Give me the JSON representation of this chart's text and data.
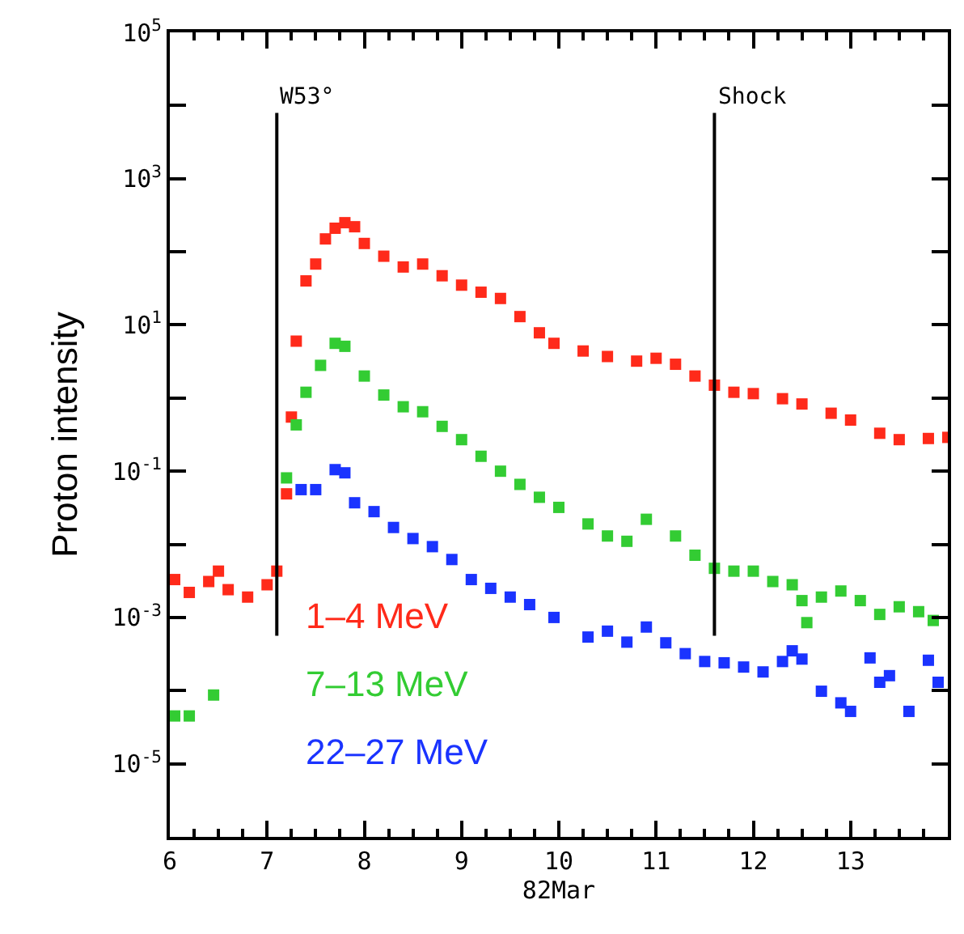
{
  "chart_data": {
    "type": "scatter",
    "xlabel": "82Mar",
    "ylabel": "Proton intensity",
    "marker": "square",
    "log": "y",
    "legend": false,
    "xlim": [
      6,
      14
    ],
    "xticks": [
      6,
      7,
      8,
      9,
      10,
      11,
      12,
      13
    ],
    "ylim": [
      1e-06,
      100000.0
    ],
    "yticks": [
      {
        "value": 1e-05,
        "label": "10$^{-5}$"
      },
      {
        "value": 0.001,
        "label": "10$^{-3}$"
      },
      {
        "value": 0.1,
        "label": "10$^{-1}$"
      },
      {
        "value": 10,
        "label": "10$^{1}$"
      },
      {
        "value": 1000,
        "label": "10$^{3}$"
      },
      {
        "value": 100000.0,
        "label": "10$^{5}$"
      }
    ],
    "ref_lines": [
      {
        "axis": "x",
        "value": 7.1,
        "label": "W53°",
        "color": "#000000"
      },
      {
        "axis": "x",
        "value": 11.6,
        "label": "Shock",
        "color": "#000000"
      }
    ],
    "series": [
      {
        "name": "1–4 MeV",
        "color": "#ff2a1a",
        "x": [
          6.05,
          6.2,
          6.4,
          6.5,
          6.6,
          6.8,
          7.0,
          7.1,
          7.2,
          7.25,
          7.3,
          7.4,
          7.5,
          7.6,
          7.7,
          7.8,
          7.9,
          8.0,
          8.2,
          8.4,
          8.6,
          8.8,
          9.0,
          9.2,
          9.4,
          9.6,
          9.8,
          9.95,
          10.25,
          10.5,
          10.8,
          11.0,
          11.2,
          11.4,
          11.6,
          11.8,
          12.0,
          12.3,
          12.5,
          12.8,
          13.0,
          13.3,
          13.5,
          13.8,
          14.0
        ],
        "values": [
          0.0033,
          0.0022,
          0.0031,
          0.0043,
          0.0024,
          0.0019,
          0.0028,
          0.0043,
          0.049,
          0.55,
          6.0,
          40,
          68,
          150,
          210,
          250,
          220,
          130,
          87,
          62,
          68,
          47,
          35,
          28,
          23,
          13,
          7.8,
          5.6,
          4.4,
          3.7,
          3.2,
          3.5,
          2.9,
          2.0,
          1.5,
          1.2,
          1.15,
          0.98,
          0.83,
          0.62,
          0.5,
          0.33,
          0.27,
          0.28,
          0.29
        ]
      },
      {
        "name": "7–13 MeV",
        "color": "#33cc33",
        "x": [
          6.05,
          6.2,
          6.45,
          7.2,
          7.3,
          7.4,
          7.55,
          7.7,
          7.8,
          8.0,
          8.2,
          8.4,
          8.6,
          8.8,
          9.0,
          9.2,
          9.4,
          9.6,
          9.8,
          10.0,
          10.3,
          10.5,
          10.7,
          10.9,
          11.2,
          11.4,
          11.6,
          11.8,
          12.0,
          12.2,
          12.4,
          12.5,
          12.55,
          12.7,
          12.9,
          13.1,
          13.3,
          13.5,
          13.7,
          13.85
        ],
        "values": [
          4.5e-05,
          4.5e-05,
          8.7e-05,
          0.081,
          0.43,
          1.2,
          2.8,
          5.6,
          5.1,
          2.0,
          1.1,
          0.76,
          0.65,
          0.41,
          0.27,
          0.16,
          0.1,
          0.066,
          0.044,
          0.032,
          0.019,
          0.013,
          0.011,
          0.022,
          0.013,
          0.0071,
          0.0047,
          0.0043,
          0.0043,
          0.0031,
          0.0028,
          0.0017,
          0.00085,
          0.0019,
          0.0023,
          0.0017,
          0.0011,
          0.0014,
          0.0012,
          0.00091
        ]
      },
      {
        "name": "22–27 MeV",
        "color": "#1a33ff",
        "x": [
          7.35,
          7.5,
          7.7,
          7.8,
          7.9,
          8.1,
          8.3,
          8.5,
          8.7,
          8.9,
          9.1,
          9.3,
          9.5,
          9.7,
          9.95,
          10.3,
          10.5,
          10.7,
          10.9,
          11.1,
          11.3,
          11.5,
          11.7,
          11.9,
          12.1,
          12.3,
          12.4,
          12.5,
          12.7,
          12.9,
          13.0,
          13.2,
          13.3,
          13.4,
          13.6,
          13.8,
          13.9
        ],
        "values": [
          0.056,
          0.056,
          0.105,
          0.095,
          0.037,
          0.028,
          0.017,
          0.012,
          0.0093,
          0.0062,
          0.0033,
          0.0025,
          0.0019,
          0.0015,
          0.001,
          0.00054,
          0.00065,
          0.00046,
          0.00074,
          0.00045,
          0.00032,
          0.00025,
          0.00024,
          0.00021,
          0.00018,
          0.00025,
          0.00035,
          0.00027,
          9.8e-05,
          6.8e-05,
          5.2e-05,
          0.00028,
          0.00013,
          0.00016,
          5.2e-05,
          0.00026,
          0.00013
        ]
      }
    ]
  }
}
